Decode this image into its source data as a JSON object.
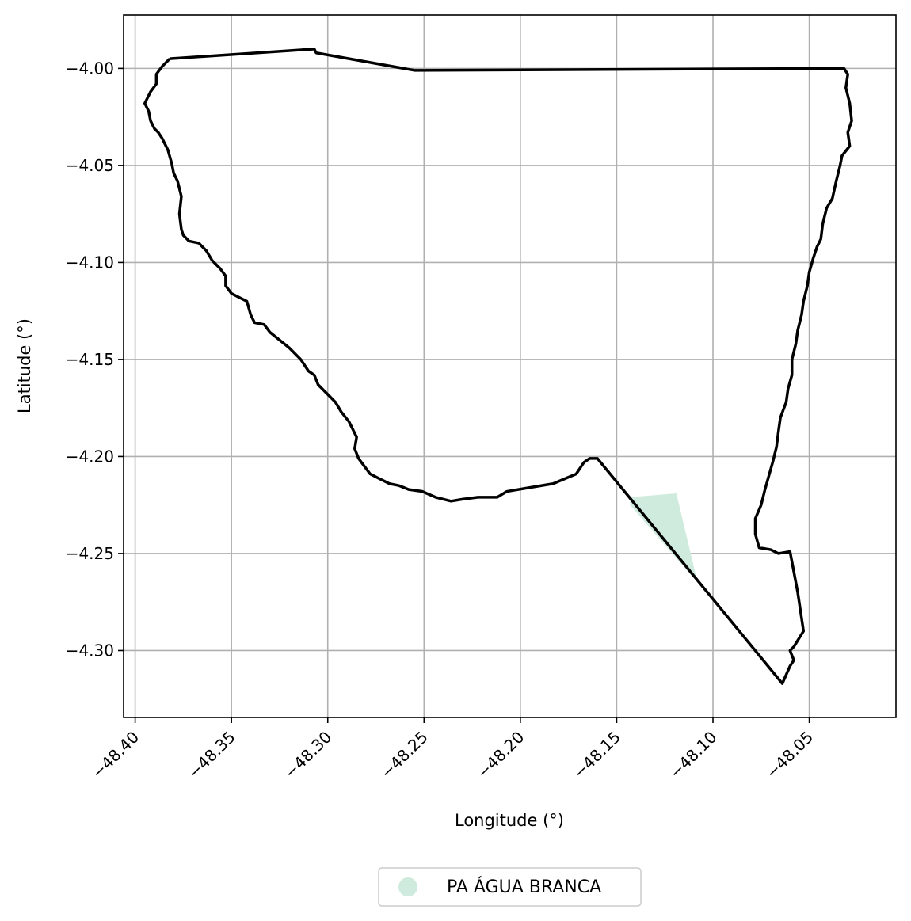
{
  "chart_data": {
    "type": "map",
    "xlabel": "Longitude (°)",
    "ylabel": "Latitude (°)",
    "xlim": [
      -48.406,
      -48.005
    ],
    "ylim": [
      -4.3345,
      -3.9725
    ],
    "grid": true,
    "x_ticks": [
      {
        "value": -48.4,
        "label": "−48.40"
      },
      {
        "value": -48.35,
        "label": "−48.35"
      },
      {
        "value": -48.3,
        "label": "−48.30"
      },
      {
        "value": -48.25,
        "label": "−48.25"
      },
      {
        "value": -48.2,
        "label": "−48.20"
      },
      {
        "value": -48.15,
        "label": "−48.15"
      },
      {
        "value": -48.1,
        "label": "−48.10"
      },
      {
        "value": -48.05,
        "label": "−48.05"
      }
    ],
    "y_ticks": [
      {
        "value": -4.0,
        "label": "−4.00"
      },
      {
        "value": -4.05,
        "label": "−4.05"
      },
      {
        "value": -4.1,
        "label": "−4.10"
      },
      {
        "value": -4.15,
        "label": "−4.15"
      },
      {
        "value": -4.2,
        "label": "−4.20"
      },
      {
        "value": -4.25,
        "label": "−4.25"
      },
      {
        "value": -4.3,
        "label": "−4.30"
      }
    ],
    "boundary": {
      "color": "#000000",
      "points": [
        [
          -48.382,
          -3.995
        ],
        [
          -48.307,
          -3.99
        ],
        [
          -48.306,
          -3.992
        ],
        [
          -48.255,
          -4.001
        ],
        [
          -48.032,
          -4.0
        ],
        [
          -48.03,
          -4.003
        ],
        [
          -48.031,
          -4.01
        ],
        [
          -48.029,
          -4.018
        ],
        [
          -48.028,
          -4.027
        ],
        [
          -48.03,
          -4.033
        ],
        [
          -48.029,
          -4.04
        ],
        [
          -48.033,
          -4.045
        ],
        [
          -48.034,
          -4.05
        ],
        [
          -48.036,
          -4.058
        ],
        [
          -48.038,
          -4.067
        ],
        [
          -48.041,
          -4.072
        ],
        [
          -48.043,
          -4.08
        ],
        [
          -48.044,
          -4.088
        ],
        [
          -48.046,
          -4.092
        ],
        [
          -48.048,
          -4.098
        ],
        [
          -48.05,
          -4.105
        ],
        [
          -48.051,
          -4.112
        ],
        [
          -48.053,
          -4.12
        ],
        [
          -48.054,
          -4.127
        ],
        [
          -48.056,
          -4.135
        ],
        [
          -48.057,
          -4.142
        ],
        [
          -48.059,
          -4.15
        ],
        [
          -48.059,
          -4.158
        ],
        [
          -48.061,
          -4.165
        ],
        [
          -48.062,
          -4.172
        ],
        [
          -48.065,
          -4.18
        ],
        [
          -48.066,
          -4.187
        ],
        [
          -48.067,
          -4.195
        ],
        [
          -48.069,
          -4.203
        ],
        [
          -48.071,
          -4.21
        ],
        [
          -48.073,
          -4.217
        ],
        [
          -48.075,
          -4.225
        ],
        [
          -48.078,
          -4.232
        ],
        [
          -48.078,
          -4.24
        ],
        [
          -48.076,
          -4.247
        ],
        [
          -48.07,
          -4.248
        ],
        [
          -48.066,
          -4.25
        ],
        [
          -48.06,
          -4.249
        ],
        [
          -48.056,
          -4.27
        ],
        [
          -48.053,
          -4.29
        ],
        [
          -48.058,
          -4.298
        ],
        [
          -48.06,
          -4.3
        ],
        [
          -48.058,
          -4.305
        ],
        [
          -48.06,
          -4.308
        ],
        [
          -48.064,
          -4.317
        ],
        [
          -48.16,
          -4.201
        ],
        [
          -48.164,
          -4.201
        ],
        [
          -48.167,
          -4.203
        ],
        [
          -48.171,
          -4.209
        ],
        [
          -48.183,
          -4.214
        ],
        [
          -48.195,
          -4.216
        ],
        [
          -48.207,
          -4.218
        ],
        [
          -48.212,
          -4.221
        ],
        [
          -48.222,
          -4.221
        ],
        [
          -48.23,
          -4.222
        ],
        [
          -48.236,
          -4.223
        ],
        [
          -48.244,
          -4.221
        ],
        [
          -48.251,
          -4.218
        ],
        [
          -48.258,
          -4.217
        ],
        [
          -48.263,
          -4.215
        ],
        [
          -48.268,
          -4.214
        ],
        [
          -48.274,
          -4.211
        ],
        [
          -48.278,
          -4.209
        ],
        [
          -48.281,
          -4.205
        ],
        [
          -48.284,
          -4.201
        ],
        [
          -48.286,
          -4.196
        ],
        [
          -48.285,
          -4.19
        ],
        [
          -48.287,
          -4.186
        ],
        [
          -48.289,
          -4.182
        ],
        [
          -48.293,
          -4.177
        ],
        [
          -48.296,
          -4.172
        ],
        [
          -48.3,
          -4.168
        ],
        [
          -48.305,
          -4.163
        ],
        [
          -48.307,
          -4.158
        ],
        [
          -48.31,
          -4.156
        ],
        [
          -48.314,
          -4.15
        ],
        [
          -48.32,
          -4.144
        ],
        [
          -48.325,
          -4.14
        ],
        [
          -48.33,
          -4.136
        ],
        [
          -48.333,
          -4.132
        ],
        [
          -48.338,
          -4.131
        ],
        [
          -48.34,
          -4.127
        ],
        [
          -48.342,
          -4.12
        ],
        [
          -48.346,
          -4.118
        ],
        [
          -48.35,
          -4.116
        ],
        [
          -48.353,
          -4.112
        ],
        [
          -48.353,
          -4.107
        ],
        [
          -48.356,
          -4.103
        ],
        [
          -48.36,
          -4.099
        ],
        [
          -48.363,
          -4.094
        ],
        [
          -48.367,
          -4.09
        ],
        [
          -48.372,
          -4.089
        ],
        [
          -48.375,
          -4.086
        ],
        [
          -48.376,
          -4.083
        ],
        [
          -48.377,
          -4.075
        ],
        [
          -48.376,
          -4.066
        ],
        [
          -48.378,
          -4.058
        ],
        [
          -48.38,
          -4.054
        ],
        [
          -48.381,
          -4.049
        ],
        [
          -48.383,
          -4.042
        ],
        [
          -48.386,
          -4.036
        ],
        [
          -48.388,
          -4.033
        ],
        [
          -48.39,
          -4.031
        ],
        [
          -48.392,
          -4.027
        ],
        [
          -48.393,
          -4.022
        ],
        [
          -48.395,
          -4.018
        ],
        [
          -48.392,
          -4.012
        ],
        [
          -48.389,
          -4.008
        ],
        [
          -48.389,
          -4.003
        ],
        [
          -48.386,
          -3.999
        ],
        [
          -48.384,
          -3.997
        ],
        [
          -48.382,
          -3.995
        ]
      ]
    },
    "series": [
      {
        "name": "PA ÁGUA BRANCA",
        "color": "#cfebdd",
        "polygon": [
          [
            -48.143,
            -4.221
          ],
          [
            -48.119,
            -4.219
          ],
          [
            -48.108,
            -4.265
          ],
          [
            -48.143,
            -4.225
          ]
        ]
      }
    ],
    "legend_position": "bottom-center"
  }
}
